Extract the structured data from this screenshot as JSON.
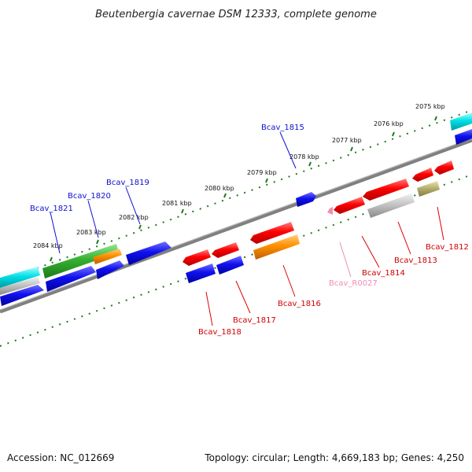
{
  "title": "Beutenbergia cavernae DSM 12333, complete genome",
  "footer": {
    "accession": "Accession: NC_012669",
    "summary": "Topology: circular; Length: 4,669,183 bp; Genes: 4,250"
  },
  "ticks": [
    {
      "label": "2075 kbp"
    },
    {
      "label": "2076 kbp"
    },
    {
      "label": "2077 kbp"
    },
    {
      "label": "2078 kbp"
    },
    {
      "label": "2079 kbp"
    },
    {
      "label": "2080 kbp"
    },
    {
      "label": "2081 kbp"
    },
    {
      "label": "2082 kbp"
    },
    {
      "label": "2083 kbp"
    },
    {
      "label": "2084 kbp"
    }
  ],
  "genes": [
    {
      "label": "Bcav_1812",
      "strand": "reverse",
      "color": "#e00000"
    },
    {
      "label": "Bcav_1813",
      "strand": "reverse",
      "color": "#e00000"
    },
    {
      "label": "Bcav_1814",
      "strand": "reverse",
      "color": "#e00000"
    },
    {
      "label": "Bcav_R0027",
      "strand": "reverse",
      "color": "#f08cb4"
    },
    {
      "label": "Bcav_1815",
      "strand": "forward",
      "color": "#1010d0"
    },
    {
      "label": "Bcav_1816",
      "strand": "reverse",
      "color": "#e00000"
    },
    {
      "label": "Bcav_1817",
      "strand": "reverse",
      "color": "#e00000"
    },
    {
      "label": "Bcav_1818",
      "strand": "reverse",
      "color": "#e00000"
    },
    {
      "label": "Bcav_1819",
      "strand": "forward",
      "color": "#1010d0"
    },
    {
      "label": "Bcav_1820",
      "strand": "forward",
      "color": "#1010d0"
    },
    {
      "label": "Bcav_1821",
      "strand": "forward",
      "color": "#1010d0"
    }
  ],
  "colors": {
    "forward_cds": "#1a1ae6",
    "reverse_cds": "#e60000",
    "cyan_feature": "#00d8e0",
    "green_feature": "#36b030",
    "orange_feature": "#ff8c00",
    "grey_feature": "#bdbdbd",
    "olive_feature": "#b5b070",
    "rna_feature": "#f08cb4",
    "tick_dots": "#1f7a1f",
    "backbone": "#808080"
  }
}
